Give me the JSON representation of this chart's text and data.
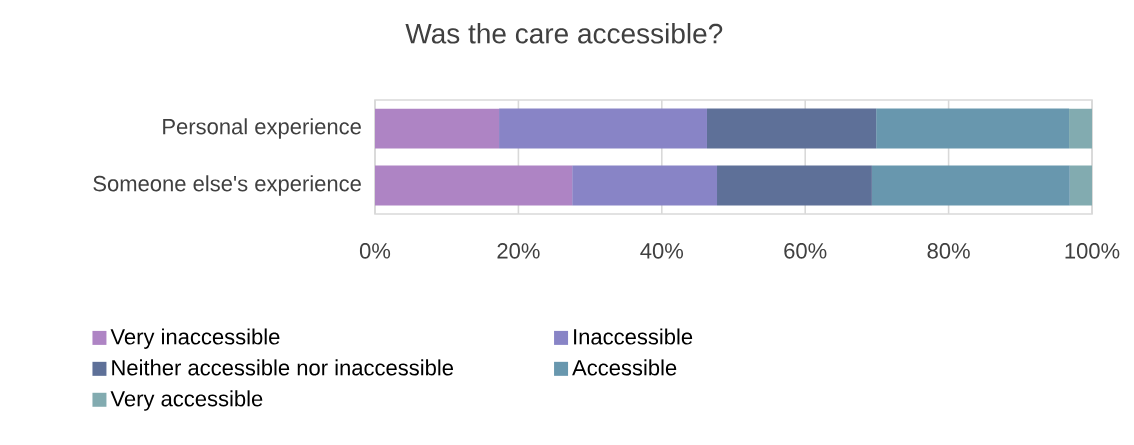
{
  "chart_data": {
    "type": "bar",
    "orientation": "horizontal",
    "stacked": true,
    "title": "Was the care accessible?",
    "categories": [
      "Personal experience",
      "Someone else's experience"
    ],
    "series": [
      {
        "name": "Very inaccessible",
        "color": "#ae84c4",
        "values": [
          17.3,
          27.5
        ]
      },
      {
        "name": "Inaccessible",
        "color": "#8884c6",
        "values": [
          29.0,
          20.2
        ]
      },
      {
        "name": "Neither accessible nor inaccessible",
        "color": "#5e7098",
        "values": [
          23.6,
          21.6
        ]
      },
      {
        "name": "Accessible",
        "color": "#6897ae",
        "values": [
          26.9,
          27.6
        ]
      },
      {
        "name": "Very accessible",
        "color": "#82abb0",
        "values": [
          3.2,
          3.1
        ]
      }
    ],
    "xlim": [
      0,
      100
    ],
    "xticks": [
      {
        "value": 0,
        "label": "0%"
      },
      {
        "value": 20,
        "label": "20%"
      },
      {
        "value": 40,
        "label": "40%"
      },
      {
        "value": 60,
        "label": "60%"
      },
      {
        "value": 80,
        "label": "80%"
      },
      {
        "value": 100,
        "label": "100%"
      }
    ],
    "grid": "x",
    "legend": "bottom"
  }
}
